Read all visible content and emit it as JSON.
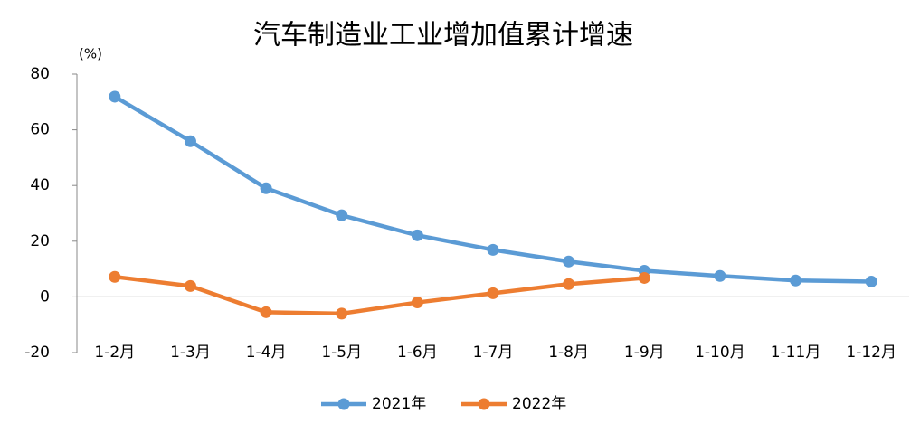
{
  "chart_data": {
    "type": "line",
    "title": "汽车制造业工业增加值累计增速",
    "y_unit_label": "(%)",
    "categories": [
      "1-2月",
      "1-3月",
      "1-4月",
      "1-5月",
      "1-6月",
      "1-7月",
      "1-8月",
      "1-9月",
      "1-10月",
      "1-11月",
      "1-12月"
    ],
    "series": [
      {
        "name": "2021年",
        "color": "#5b9bd5",
        "values": [
          71.9,
          55.9,
          39,
          29.3,
          22.1,
          16.9,
          12.7,
          9.4,
          7.5,
          5.9,
          5.5
        ]
      },
      {
        "name": "2022年",
        "color": "#ed7d31",
        "values": [
          7.2,
          3.9,
          -5.5,
          -6,
          -2,
          1.3,
          4.6,
          6.8,
          null,
          null,
          null
        ]
      }
    ],
    "ylim": [
      -20,
      80
    ],
    "yticks": [
      -20,
      0,
      20,
      40,
      60,
      80
    ],
    "negative_tick_color": "#ff0000",
    "grid": false,
    "legend": "bottom"
  }
}
